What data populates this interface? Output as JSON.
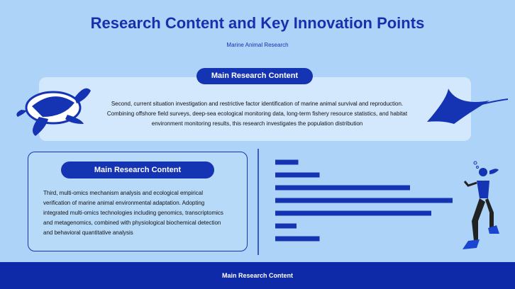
{
  "header": {
    "title": "Research Content and Key Innovation Points",
    "subtitle": "Marine Animal Research"
  },
  "top_panel": {
    "heading": "Main Research Content",
    "text": "Second, current situation investigation and restrictive factor identification of marine animal survival and reproduction. Combining offshore field surveys, deep-sea ecological monitoring data, long-term fishery resource statistics, and habitat environment monitoring results, this research investigates the population distribution"
  },
  "left_panel": {
    "heading": "Main Research Content",
    "text": "Third, multi-omics mechanism analysis and ecological empirical verification of marine animal environmental adaptation. Adopting integrated multi-omics technologies including genomics, transcriptomics and metagenomics, combined with physiological biochemical detection and behavioral quantitative analysis"
  },
  "bars": {
    "values": [
      13,
      25,
      76,
      100,
      88,
      12,
      25
    ],
    "xlim": [
      0,
      100
    ],
    "color": "#1434b4"
  },
  "footer": {
    "text": "Main Research Content"
  }
}
